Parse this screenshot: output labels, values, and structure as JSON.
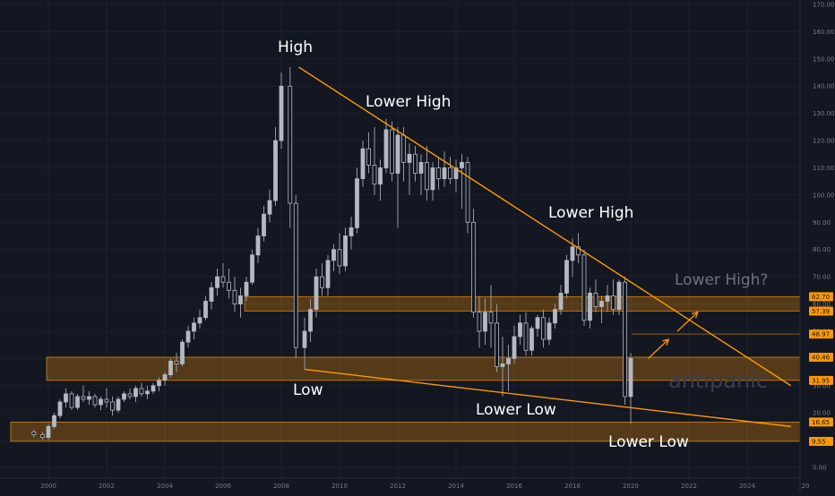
{
  "chart_data": {
    "type": "candlestick",
    "x_ticks": [
      "2000",
      "2002",
      "2004",
      "2006",
      "2008",
      "2010",
      "2012",
      "2014",
      "2016",
      "2018",
      "2020",
      "2022",
      "2024",
      "20"
    ],
    "y_ticks": [
      "170.00",
      "160.00",
      "150.00",
      "140.00",
      "130.00",
      "120.00",
      "110.00",
      "100.00",
      "90.00",
      "80.00",
      "70.00",
      "60.00",
      "50.00",
      "40.00",
      "30.00",
      "20.00",
      "10.00",
      "0.00"
    ],
    "ylim": [
      0,
      170
    ],
    "xlim": [
      1999.5,
      2025.5
    ],
    "price_levels": [
      "62.70",
      "57.39",
      "48.97",
      "40.46",
      "31.95",
      "16.65",
      "9.55"
    ],
    "zones": [
      {
        "low": 57.39,
        "high": 62.7
      },
      {
        "low": 31.95,
        "high": 40.46
      },
      {
        "low": 9.55,
        "high": 16.65
      }
    ],
    "annotations": {
      "high": "High",
      "lower_high_1": "Lower High",
      "lower_high_2": "Lower High",
      "lower_high_3": "Lower High?",
      "low": "Low",
      "lower_low_1": "Lower Low",
      "lower_low_2": "Lower Low"
    },
    "watermark": "antipanic",
    "trendlines": [
      {
        "from": [
          2008.6,
          147
        ],
        "to": [
          2025.5,
          30
        ]
      },
      {
        "from": [
          2008.8,
          36
        ],
        "to": [
          2025.5,
          15
        ]
      }
    ],
    "projection_arrows": [
      {
        "from": [
          2020.6,
          40
        ],
        "to": [
          2021.3,
          47
        ]
      },
      {
        "from": [
          2021.6,
          50
        ],
        "to": [
          2022.3,
          57
        ]
      }
    ],
    "candles": [
      [
        1999.5,
        13,
        14,
        11,
        12
      ],
      [
        1999.8,
        12,
        13,
        10,
        11
      ],
      [
        2000.0,
        11,
        16,
        10,
        15
      ],
      [
        2000.2,
        15,
        20,
        14,
        19
      ],
      [
        2000.4,
        19,
        25,
        18,
        24
      ],
      [
        2000.6,
        24,
        29,
        22,
        27
      ],
      [
        2000.8,
        27,
        28,
        21,
        22
      ],
      [
        2001.0,
        22,
        27,
        21,
        26
      ],
      [
        2001.2,
        26,
        30,
        24,
        25
      ],
      [
        2001.4,
        25,
        28,
        23,
        26
      ],
      [
        2001.6,
        26,
        27,
        22,
        23
      ],
      [
        2001.8,
        23,
        26,
        21,
        25
      ],
      [
        2002.0,
        25,
        29,
        22,
        24
      ],
      [
        2002.2,
        24,
        26,
        19,
        21
      ],
      [
        2002.4,
        21,
        26,
        20,
        25
      ],
      [
        2002.6,
        25,
        28,
        24,
        27
      ],
      [
        2002.8,
        27,
        29,
        25,
        26
      ],
      [
        2003.0,
        26,
        30,
        24,
        29
      ],
      [
        2003.2,
        29,
        31,
        26,
        27
      ],
      [
        2003.4,
        27,
        30,
        25,
        28
      ],
      [
        2003.6,
        28,
        31,
        27,
        30
      ],
      [
        2003.8,
        30,
        33,
        28,
        32
      ],
      [
        2004.0,
        32,
        35,
        30,
        34
      ],
      [
        2004.2,
        34,
        40,
        33,
        39
      ],
      [
        2004.4,
        39,
        42,
        35,
        38
      ],
      [
        2004.6,
        38,
        47,
        37,
        46
      ],
      [
        2004.8,
        46,
        52,
        44,
        50
      ],
      [
        2005.0,
        50,
        55,
        47,
        53
      ],
      [
        2005.2,
        53,
        58,
        51,
        55
      ],
      [
        2005.4,
        55,
        63,
        54,
        61
      ],
      [
        2005.6,
        61,
        68,
        58,
        66
      ],
      [
        2005.8,
        66,
        73,
        63,
        70
      ],
      [
        2006.0,
        70,
        75,
        66,
        68
      ],
      [
        2006.2,
        68,
        73,
        62,
        65
      ],
      [
        2006.4,
        65,
        70,
        57,
        60
      ],
      [
        2006.6,
        60,
        66,
        55,
        63
      ],
      [
        2006.8,
        63,
        70,
        61,
        68
      ],
      [
        2007.0,
        68,
        80,
        67,
        78
      ],
      [
        2007.2,
        78,
        88,
        75,
        85
      ],
      [
        2007.4,
        85,
        96,
        83,
        93
      ],
      [
        2007.6,
        93,
        102,
        90,
        98
      ],
      [
        2007.8,
        98,
        125,
        96,
        120
      ],
      [
        2008.0,
        120,
        145,
        117,
        140
      ],
      [
        2008.3,
        140,
        147,
        88,
        97
      ],
      [
        2008.5,
        97,
        100,
        40,
        44
      ],
      [
        2008.8,
        44,
        55,
        36,
        50
      ],
      [
        2009.0,
        50,
        62,
        46,
        58
      ],
      [
        2009.2,
        58,
        73,
        55,
        70
      ],
      [
        2009.4,
        70,
        75,
        63,
        66
      ],
      [
        2009.6,
        66,
        78,
        63,
        76
      ],
      [
        2009.8,
        76,
        82,
        72,
        80
      ],
      [
        2010.0,
        80,
        86,
        71,
        74
      ],
      [
        2010.2,
        74,
        88,
        72,
        85
      ],
      [
        2010.4,
        85,
        92,
        80,
        88
      ],
      [
        2010.6,
        88,
        110,
        86,
        106
      ],
      [
        2010.8,
        106,
        120,
        103,
        117
      ],
      [
        2011.0,
        117,
        123,
        108,
        111
      ],
      [
        2011.2,
        111,
        125,
        100,
        104
      ],
      [
        2011.4,
        104,
        113,
        98,
        110
      ],
      [
        2011.6,
        110,
        128,
        108,
        124
      ],
      [
        2011.8,
        124,
        127,
        105,
        108
      ],
      [
        2012.0,
        108,
        125,
        88,
        122
      ],
      [
        2012.2,
        122,
        125,
        105,
        112
      ],
      [
        2012.4,
        112,
        119,
        100,
        115
      ],
      [
        2012.6,
        115,
        118,
        105,
        108
      ],
      [
        2012.8,
        108,
        115,
        100,
        112
      ],
      [
        2013.0,
        112,
        118,
        98,
        102
      ],
      [
        2013.2,
        102,
        112,
        98,
        110
      ],
      [
        2013.4,
        110,
        114,
        102,
        106
      ],
      [
        2013.6,
        106,
        116,
        103,
        110
      ],
      [
        2013.8,
        110,
        114,
        104,
        106
      ],
      [
        2014.0,
        106,
        113,
        101,
        110
      ],
      [
        2014.2,
        110,
        115,
        95,
        112
      ],
      [
        2014.4,
        112,
        114,
        86,
        90
      ],
      [
        2014.6,
        90,
        95,
        55,
        57
      ],
      [
        2014.8,
        57,
        63,
        44,
        50
      ],
      [
        2015.0,
        50,
        62,
        45,
        57
      ],
      [
        2015.2,
        57,
        67,
        44,
        53
      ],
      [
        2015.4,
        53,
        60,
        35,
        37
      ],
      [
        2015.6,
        37,
        48,
        26,
        38
      ],
      [
        2015.8,
        38,
        45,
        28,
        40
      ],
      [
        2016.0,
        40,
        52,
        38,
        48
      ],
      [
        2016.2,
        48,
        56,
        45,
        53
      ],
      [
        2016.4,
        53,
        57,
        41,
        43
      ],
      [
        2016.6,
        43,
        52,
        41,
        51
      ],
      [
        2016.8,
        51,
        56,
        48,
        55
      ],
      [
        2017.0,
        55,
        58,
        44,
        47
      ],
      [
        2017.2,
        47,
        55,
        45,
        53
      ],
      [
        2017.4,
        53,
        60,
        51,
        58
      ],
      [
        2017.6,
        58,
        67,
        56,
        64
      ],
      [
        2017.8,
        64,
        78,
        62,
        76
      ],
      [
        2018.0,
        76,
        84,
        70,
        81
      ],
      [
        2018.2,
        81,
        86,
        75,
        78
      ],
      [
        2018.4,
        78,
        80,
        52,
        54
      ],
      [
        2018.6,
        54,
        66,
        51,
        64
      ],
      [
        2018.8,
        64,
        69,
        57,
        59
      ],
      [
        2019.0,
        59,
        63,
        53,
        61
      ],
      [
        2019.2,
        61,
        67,
        57,
        63
      ],
      [
        2019.4,
        63,
        69,
        56,
        58
      ],
      [
        2019.6,
        58,
        69,
        56,
        68
      ],
      [
        2019.8,
        68,
        70,
        23,
        26
      ],
      [
        2020.0,
        26,
        42,
        16,
        40
      ]
    ]
  }
}
